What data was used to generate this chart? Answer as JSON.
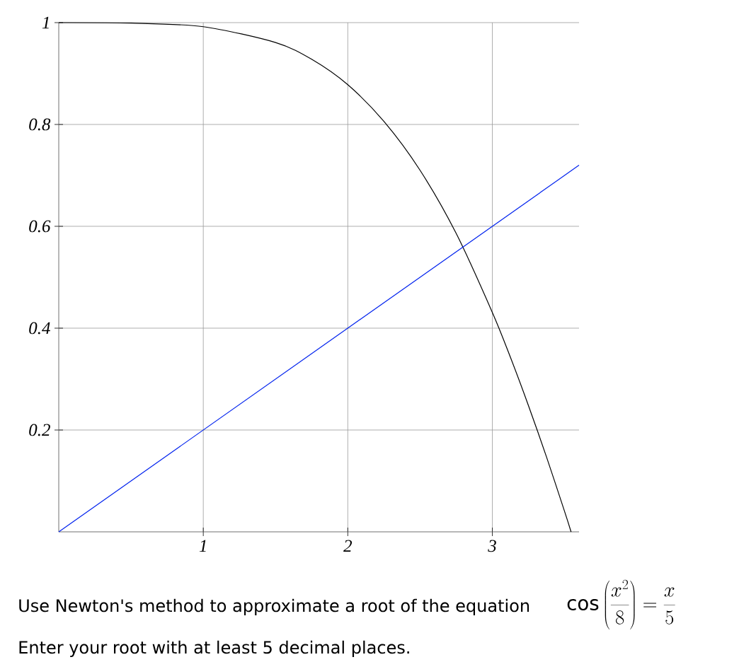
{
  "chart_data": {
    "type": "line",
    "xlim": [
      0,
      3.6
    ],
    "ylim": [
      0,
      1
    ],
    "xticks": [
      1,
      2,
      3
    ],
    "yticks": [
      0.2,
      0.4,
      0.6,
      0.8,
      1
    ],
    "grid": true,
    "marker": "none",
    "series": [
      {
        "color": "#000000",
        "x": [
          0,
          0.5,
          1,
          1.5,
          1.75,
          2,
          2.25,
          2.5,
          2.75,
          3,
          3.125,
          3.25,
          3.375,
          3.5,
          3.545
        ],
        "values": [
          1,
          0.999,
          0.992,
          0.961,
          0.928,
          0.878,
          0.806,
          0.71,
          0.586,
          0.431,
          0.343,
          0.248,
          0.147,
          0.04,
          0
        ]
      },
      {
        "color": "#0022ee",
        "x": [
          0,
          3.6
        ],
        "values": [
          0,
          0.72
        ]
      }
    ],
    "annotations": [
      "Use Newton's method to approximate a root of the equation",
      "\\cos\\left(\\frac{x^{2}}{8}\\right)=\\frac{x}{5}",
      "Enter your root with at least 5 decimal places."
    ]
  }
}
